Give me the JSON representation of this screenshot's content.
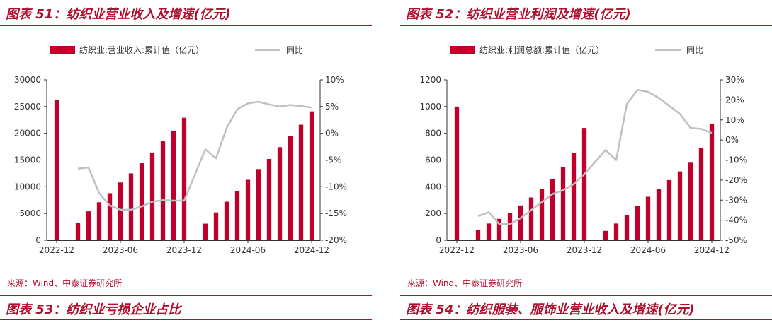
{
  "colors": {
    "bar": "#c0002a",
    "line": "#bfbfbf",
    "accent": "#b0102d"
  },
  "panels": [
    {
      "title": "图表 51：纺织业营业收入及增速(亿元)",
      "source": "来源：Wind、中泰证券研究所",
      "next_title": "图表 53：纺织业亏损企业占比",
      "chart_data": {
        "type": "bar",
        "categories": [
          "2022-12",
          "2023-01",
          "2023-02",
          "2023-03",
          "2023-04",
          "2023-05",
          "2023-06",
          "2023-07",
          "2023-08",
          "2023-09",
          "2023-10",
          "2023-11",
          "2023-12",
          "2024-01",
          "2024-02",
          "2024-03",
          "2024-04",
          "2024-05",
          "2024-06",
          "2024-07",
          "2024-08",
          "2024-09",
          "2024-10",
          "2024-11",
          "2024-12"
        ],
        "x_tick_labels": [
          "2022-12",
          "2023-06",
          "2023-12",
          "2024-06",
          "2024-12"
        ],
        "series": [
          {
            "name": "纺织业:营业收入:累计值（亿元）",
            "axis": "left",
            "values": [
              26200,
              null,
              3300,
              5400,
              7100,
              8800,
              10800,
              12500,
              14400,
              16400,
              18500,
              20500,
              22900,
              null,
              3100,
              5200,
              7200,
              9200,
              11300,
              13300,
              15200,
              17400,
              19500,
              21600,
              24100
            ]
          },
          {
            "name": "同比",
            "type": "line",
            "axis": "right",
            "values": [
              null,
              null,
              -6.6,
              -6.4,
              -11.2,
              -13.5,
              -14.3,
              -14.3,
              -13.7,
              -12.8,
              -12.5,
              -12.6,
              -12.6,
              null,
              -3.0,
              -4.7,
              1.0,
              4.5,
              5.6,
              5.9,
              5.4,
              5.0,
              5.3,
              5.1,
              4.8
            ]
          }
        ],
        "ylim": [
          0,
          30000
        ],
        "y_ticks": [
          0,
          5000,
          10000,
          15000,
          20000,
          25000,
          30000
        ],
        "y2lim": [
          -20,
          10
        ],
        "y2_ticks": [
          -20,
          -15,
          -10,
          -5,
          0,
          5,
          10
        ],
        "y2_unit": "%",
        "legend_position": "top"
      }
    },
    {
      "title": "图表 52：纺织业营业利润及增速(亿元)",
      "source": "来源：Wind、中泰证券研究所",
      "next_title": "图表 54：纺织服装、服饰业营业收入及增速(亿元)",
      "chart_data": {
        "type": "bar",
        "categories": [
          "2022-12",
          "2023-01",
          "2023-02",
          "2023-03",
          "2023-04",
          "2023-05",
          "2023-06",
          "2023-07",
          "2023-08",
          "2023-09",
          "2023-10",
          "2023-11",
          "2023-12",
          "2024-01",
          "2024-02",
          "2024-03",
          "2024-04",
          "2024-05",
          "2024-06",
          "2024-07",
          "2024-08",
          "2024-09",
          "2024-10",
          "2024-11",
          "2024-12"
        ],
        "x_tick_labels": [
          "2022-12",
          "2023-06",
          "2023-12",
          "2024-06",
          "2024-12"
        ],
        "series": [
          {
            "name": "纺织业:利润总额:累计值（亿元）",
            "axis": "left",
            "values": [
              1000,
              null,
              75,
              125,
              160,
              205,
              260,
              320,
              385,
              460,
              545,
              655,
              840,
              null,
              70,
              125,
              185,
              255,
              325,
              385,
              450,
              515,
              580,
              690,
              870
            ]
          },
          {
            "name": "同比",
            "type": "line",
            "axis": "right",
            "values": [
              null,
              null,
              -38,
              -36,
              -42,
              -42,
              -39,
              -35,
              -31,
              -27,
              -25,
              -22,
              -17,
              null,
              -5,
              -10,
              18,
              25,
              24,
              21,
              17,
              13,
              6,
              5.5,
              3.5
            ]
          }
        ],
        "ylim": [
          0,
          1200
        ],
        "y_ticks": [
          0,
          200,
          400,
          600,
          800,
          1000,
          1200
        ],
        "y2lim": [
          -50,
          30
        ],
        "y2_ticks": [
          -50,
          -40,
          -30,
          -20,
          -10,
          0,
          10,
          20,
          30
        ],
        "y2_unit": "%",
        "legend_position": "top"
      }
    }
  ]
}
